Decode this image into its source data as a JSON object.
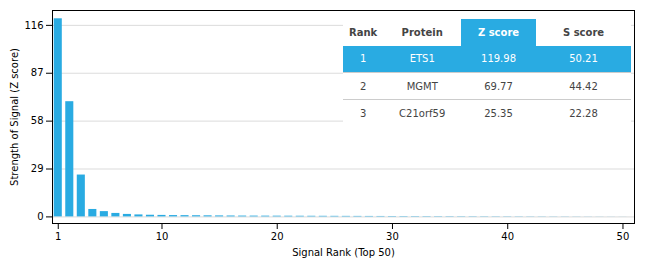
{
  "chart_data": {
    "type": "bar",
    "xlabel": "Signal Rank (Top 50)",
    "ylabel": "Strength of Signal (Z score)",
    "x": [
      1,
      2,
      3,
      4,
      5,
      6,
      7,
      8,
      9,
      10,
      11,
      12,
      13,
      14,
      15,
      16,
      17,
      18,
      19,
      20,
      21,
      22,
      23,
      24,
      25,
      26,
      27,
      28,
      29,
      30,
      31,
      32,
      33,
      34,
      35,
      36,
      37,
      38,
      39,
      40,
      41,
      42,
      43,
      44,
      45,
      46,
      47,
      48,
      49,
      50
    ],
    "values": [
      119.98,
      69.77,
      25.35,
      4.5,
      3.2,
      2.1,
      1.5,
      1.2,
      1.0,
      0.9,
      0.8,
      0.75,
      0.7,
      0.65,
      0.6,
      0.55,
      0.5,
      0.48,
      0.46,
      0.44,
      0.42,
      0.4,
      0.38,
      0.36,
      0.34,
      0.32,
      0.3,
      0.28,
      0.26,
      0.24,
      0.22,
      0.21,
      0.2,
      0.19,
      0.18,
      0.17,
      0.16,
      0.15,
      0.14,
      0.13,
      0.12,
      0.11,
      0.1,
      0.09,
      0.08,
      0.07,
      0.06,
      0.05,
      0.04,
      0.03
    ],
    "color": "#29ABE2",
    "xlim": [
      0.5,
      51
    ],
    "ylim": [
      -4,
      125
    ],
    "xticks": [
      1,
      10,
      20,
      30,
      40,
      50
    ],
    "yticks": [
      0,
      29,
      58,
      87,
      116
    ],
    "grid": true,
    "table": {
      "columns": [
        "Rank",
        "Protein",
        "Z score",
        "S score"
      ],
      "rows": [
        [
          "1",
          "ETS1",
          "119.98",
          "50.21"
        ],
        [
          "2",
          "MGMT",
          "69.77",
          "44.42"
        ],
        [
          "3",
          "C21orf59",
          "25.35",
          "22.28"
        ]
      ]
    }
  }
}
